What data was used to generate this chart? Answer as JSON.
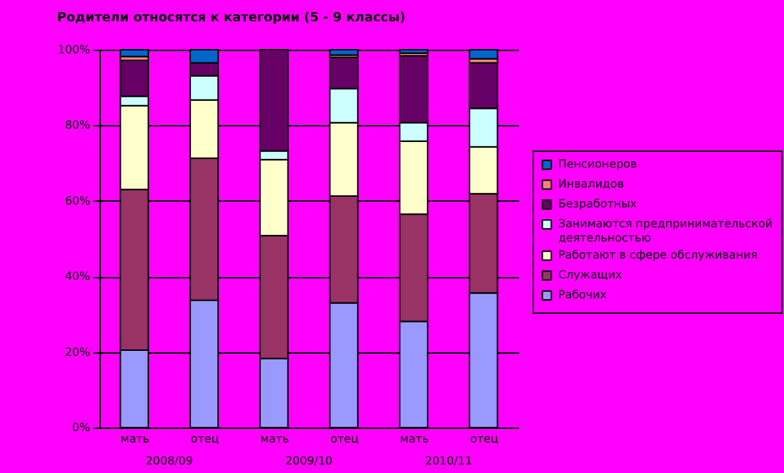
{
  "chart_data": {
    "type": "bar",
    "stacked": true,
    "title": "Родители относятся к категории (5 - 9 классы)",
    "categories": [
      "мать",
      "отец",
      "мать",
      "отец",
      "мать",
      "отец"
    ],
    "annotations": [
      "2008/09",
      "2009/10",
      "2010/11"
    ],
    "ylim": [
      0,
      100
    ],
    "yticks": [
      {
        "value": 0,
        "label": "0%"
      },
      {
        "value": 20,
        "label": "20%"
      },
      {
        "value": 40,
        "label": "40%"
      },
      {
        "value": 60,
        "label": "60%"
      },
      {
        "value": 80,
        "label": "80%"
      },
      {
        "value": 100,
        "label": "100%"
      }
    ],
    "grid": "y",
    "legend": "right",
    "series": [
      {
        "name": "Рабочих",
        "color": "#9999ff",
        "values": [
          20.5,
          33.7,
          18.3,
          33.0,
          28.1,
          35.6
        ]
      },
      {
        "name": "Служащих",
        "color": "#993366",
        "values": [
          42.5,
          37.6,
          32.5,
          28.3,
          28.4,
          26.3
        ]
      },
      {
        "name": "Работают в сфере обслуживания",
        "color": "#ffffcc",
        "values": [
          22.2,
          15.4,
          20.1,
          19.4,
          19.3,
          12.4
        ]
      },
      {
        "name": "Занимаются предпринимательской деятельностью",
        "color": "#ccffff",
        "values": [
          2.5,
          6.4,
          2.3,
          9.0,
          4.9,
          10.2
        ]
      },
      {
        "name": "Безработных",
        "color": "#660066",
        "values": [
          9.5,
          3.4,
          26.8,
          8.3,
          17.7,
          12.0
        ]
      },
      {
        "name": "Инвалидов",
        "color": "#ff8080",
        "values": [
          1.0,
          0,
          0,
          0.6,
          0.7,
          1.1
        ]
      },
      {
        "name": "Пенсионеров",
        "color": "#0066cc",
        "values": [
          1.8,
          3.5,
          0,
          1.4,
          0.9,
          2.4
        ]
      }
    ]
  }
}
